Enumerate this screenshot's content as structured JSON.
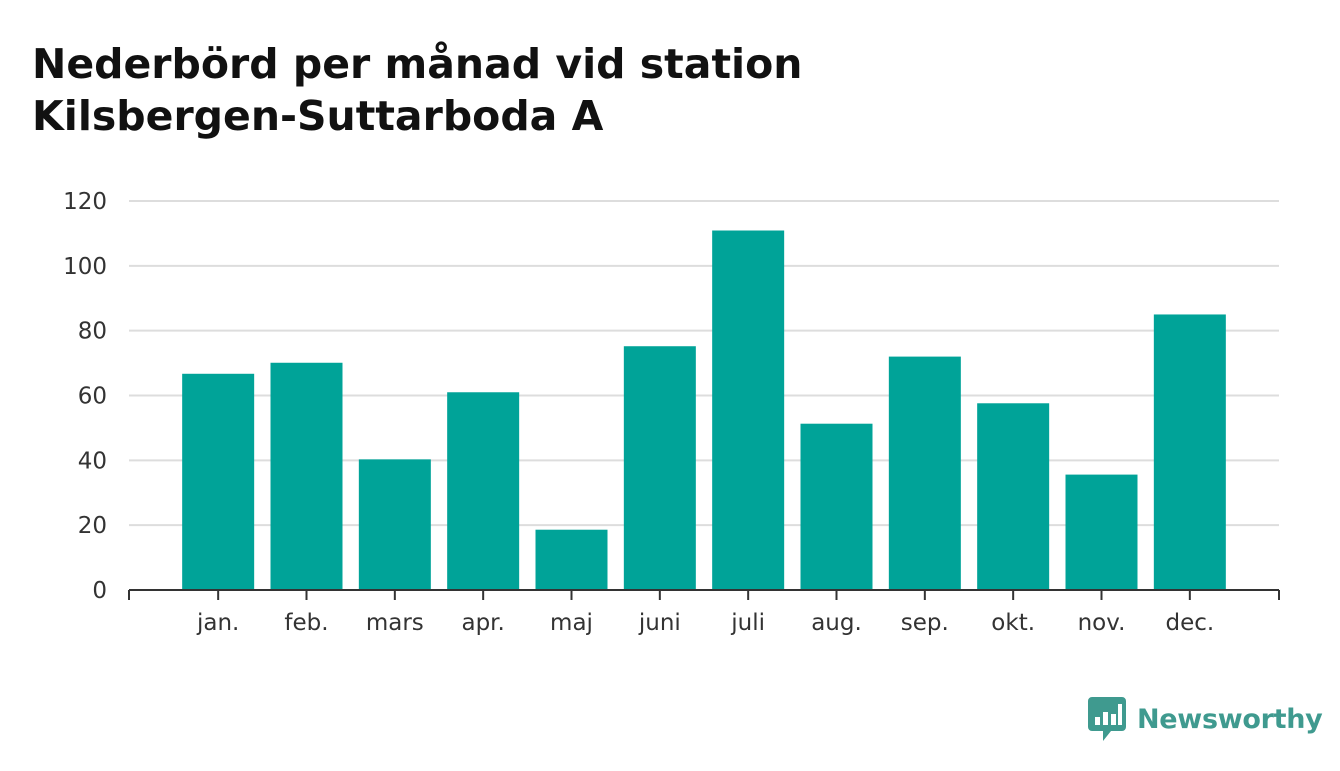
{
  "title": {
    "line1": "Nederbörd per månad vid station",
    "line2": "Kilsbergen-Suttarboda A"
  },
  "brand": {
    "name": "Newsworthy",
    "icon": "newsworthy-logo-icon",
    "color": "#3f9a8f"
  },
  "chart_data": {
    "type": "bar",
    "title": "Nederbörd per månad vid station Kilsbergen-Suttarboda A",
    "xlabel": "",
    "ylabel": "",
    "categories": [
      "jan.",
      "feb.",
      "mars",
      "apr.",
      "maj",
      "juni",
      "juli",
      "aug.",
      "sep.",
      "okt.",
      "nov.",
      "dec."
    ],
    "values": [
      66.7,
      70.1,
      40.3,
      61.0,
      18.6,
      75.2,
      110.9,
      51.3,
      72.0,
      57.6,
      35.6,
      85.0
    ],
    "ylim": [
      0,
      120
    ],
    "yticks": [
      0,
      20,
      40,
      60,
      80,
      100,
      120
    ],
    "grid": true,
    "legend": "none",
    "bar_color": "#00a398",
    "grid_color": "#dddddd",
    "axis_color": "#333333"
  }
}
